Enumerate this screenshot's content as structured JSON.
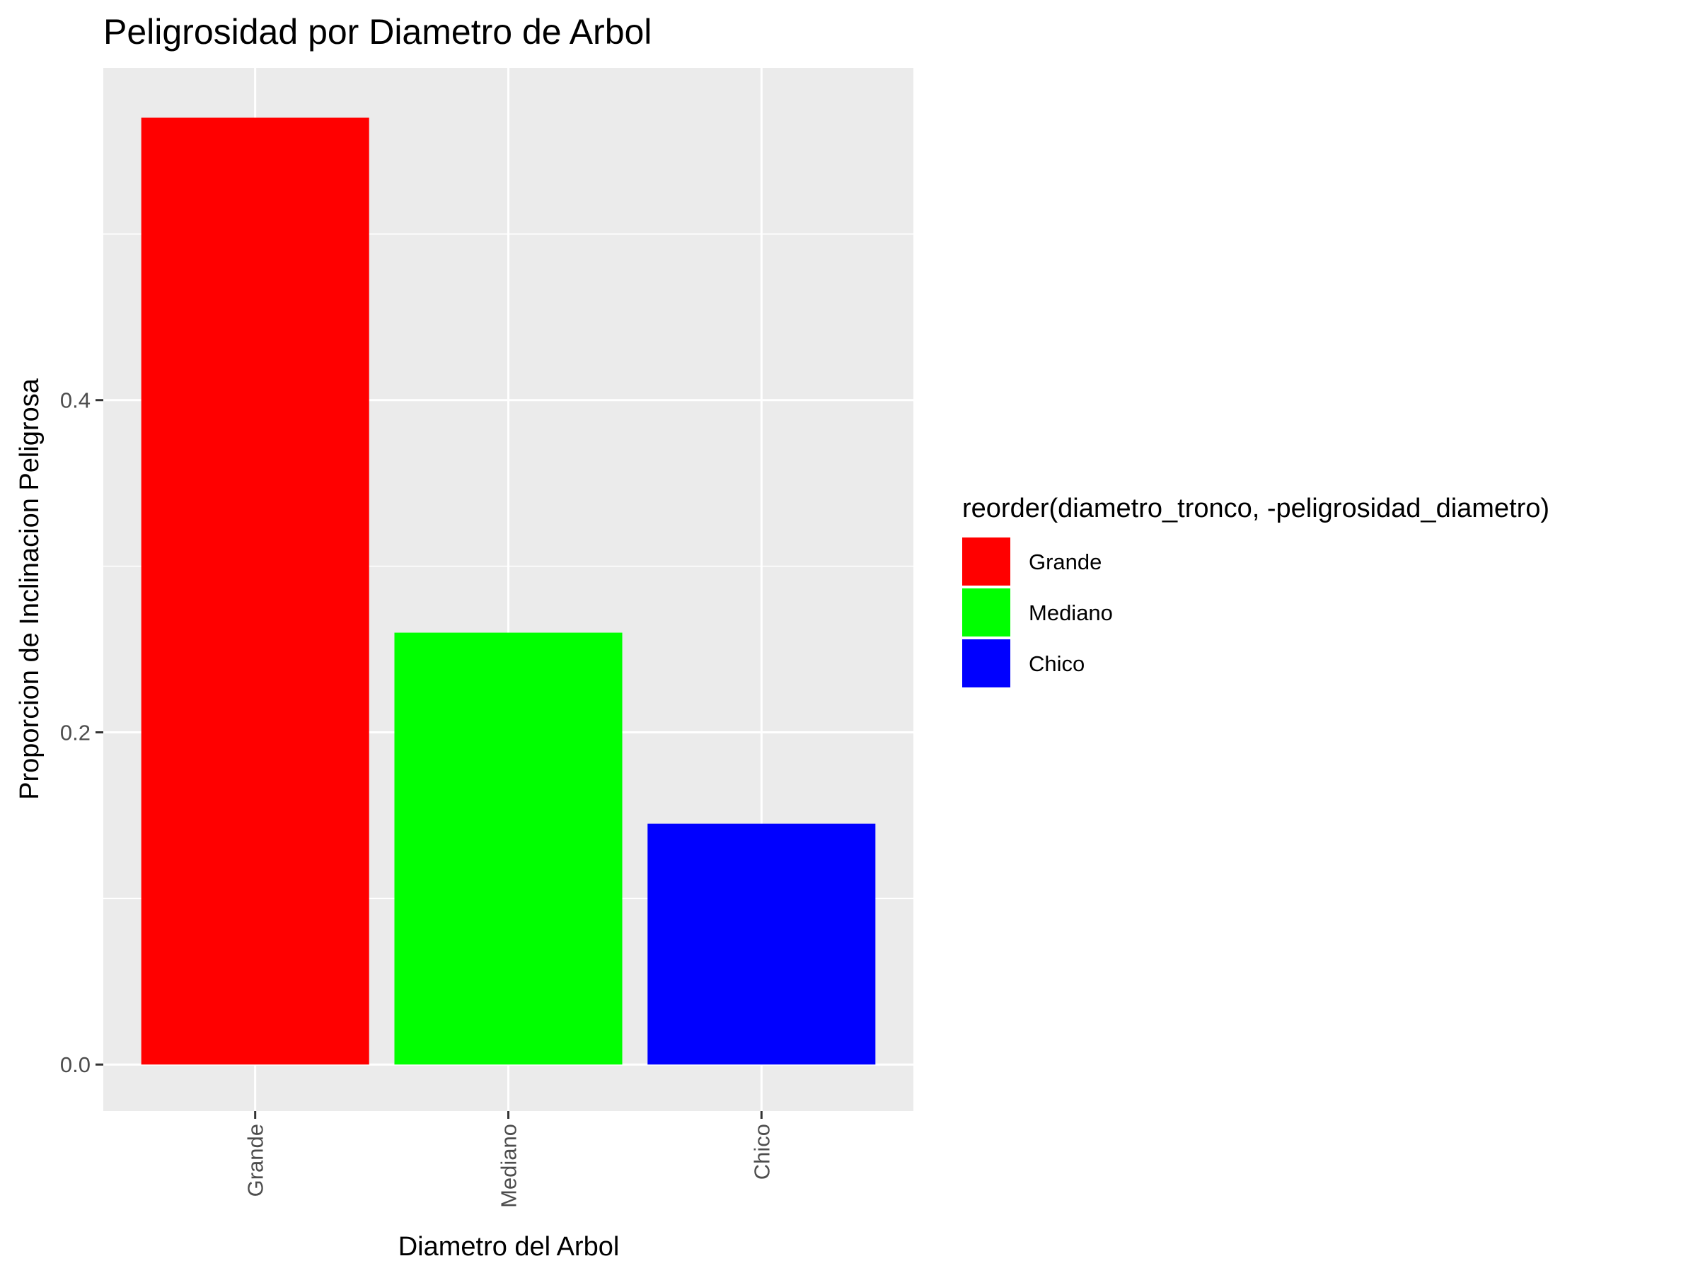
{
  "chart_data": {
    "type": "bar",
    "title": "Peligrosidad por Diametro de Arbol",
    "xlabel": "Diametro del Arbol",
    "ylabel": "Proporcion de Inclinacion Peligrosa",
    "categories": [
      "Grande",
      "Mediano",
      "Chico"
    ],
    "values": [
      0.57,
      0.26,
      0.145
    ],
    "colors": [
      "#FF0000",
      "#00FF00",
      "#0000FF"
    ],
    "ylim": [
      -0.028,
      0.6
    ],
    "yticks": [
      0.0,
      0.2,
      0.4
    ],
    "ytick_labels": [
      "0.0",
      "0.2",
      "0.4"
    ],
    "grid": true,
    "legend": {
      "title": "reorder(diametro_tronco, -peligrosidad_diametro)",
      "placement": "right",
      "entries": [
        "Grande",
        "Mediano",
        "Chico"
      ]
    }
  }
}
